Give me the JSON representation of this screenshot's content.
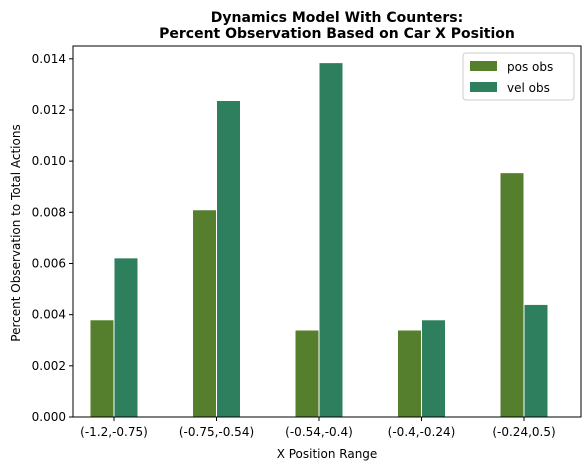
{
  "chart_data": {
    "type": "bar",
    "title": [
      "Dynamics Model With Counters:",
      "Percent Observation Based on Car X Position"
    ],
    "xlabel": "X Position Range",
    "ylabel": "Percent Observation to Total Actions",
    "categories": [
      "(-1.2,-0.75)",
      "(-0.75,-0.54)",
      "(-0.54,-0.4)",
      "(-0.4,-0.24)",
      "(-0.24,0.5)"
    ],
    "series": [
      {
        "name": "pos obs",
        "color": "#557f2d",
        "values": [
          0.0038,
          0.0081,
          0.0034,
          0.0034,
          0.00955
        ]
      },
      {
        "name": "vel obs",
        "color": "#2d7f5e",
        "values": [
          0.00622,
          0.01237,
          0.01385,
          0.0038,
          0.0044
        ]
      }
    ],
    "ylim": [
      0,
      0.0145
    ],
    "yticks": [
      0.0,
      0.002,
      0.004,
      0.006,
      0.008,
      0.01,
      0.012,
      0.014
    ],
    "ytick_labels": [
      "0.000",
      "0.002",
      "0.004",
      "0.006",
      "0.008",
      "0.010",
      "0.012",
      "0.014"
    ],
    "legend_position": "top-right",
    "grid": false
  }
}
